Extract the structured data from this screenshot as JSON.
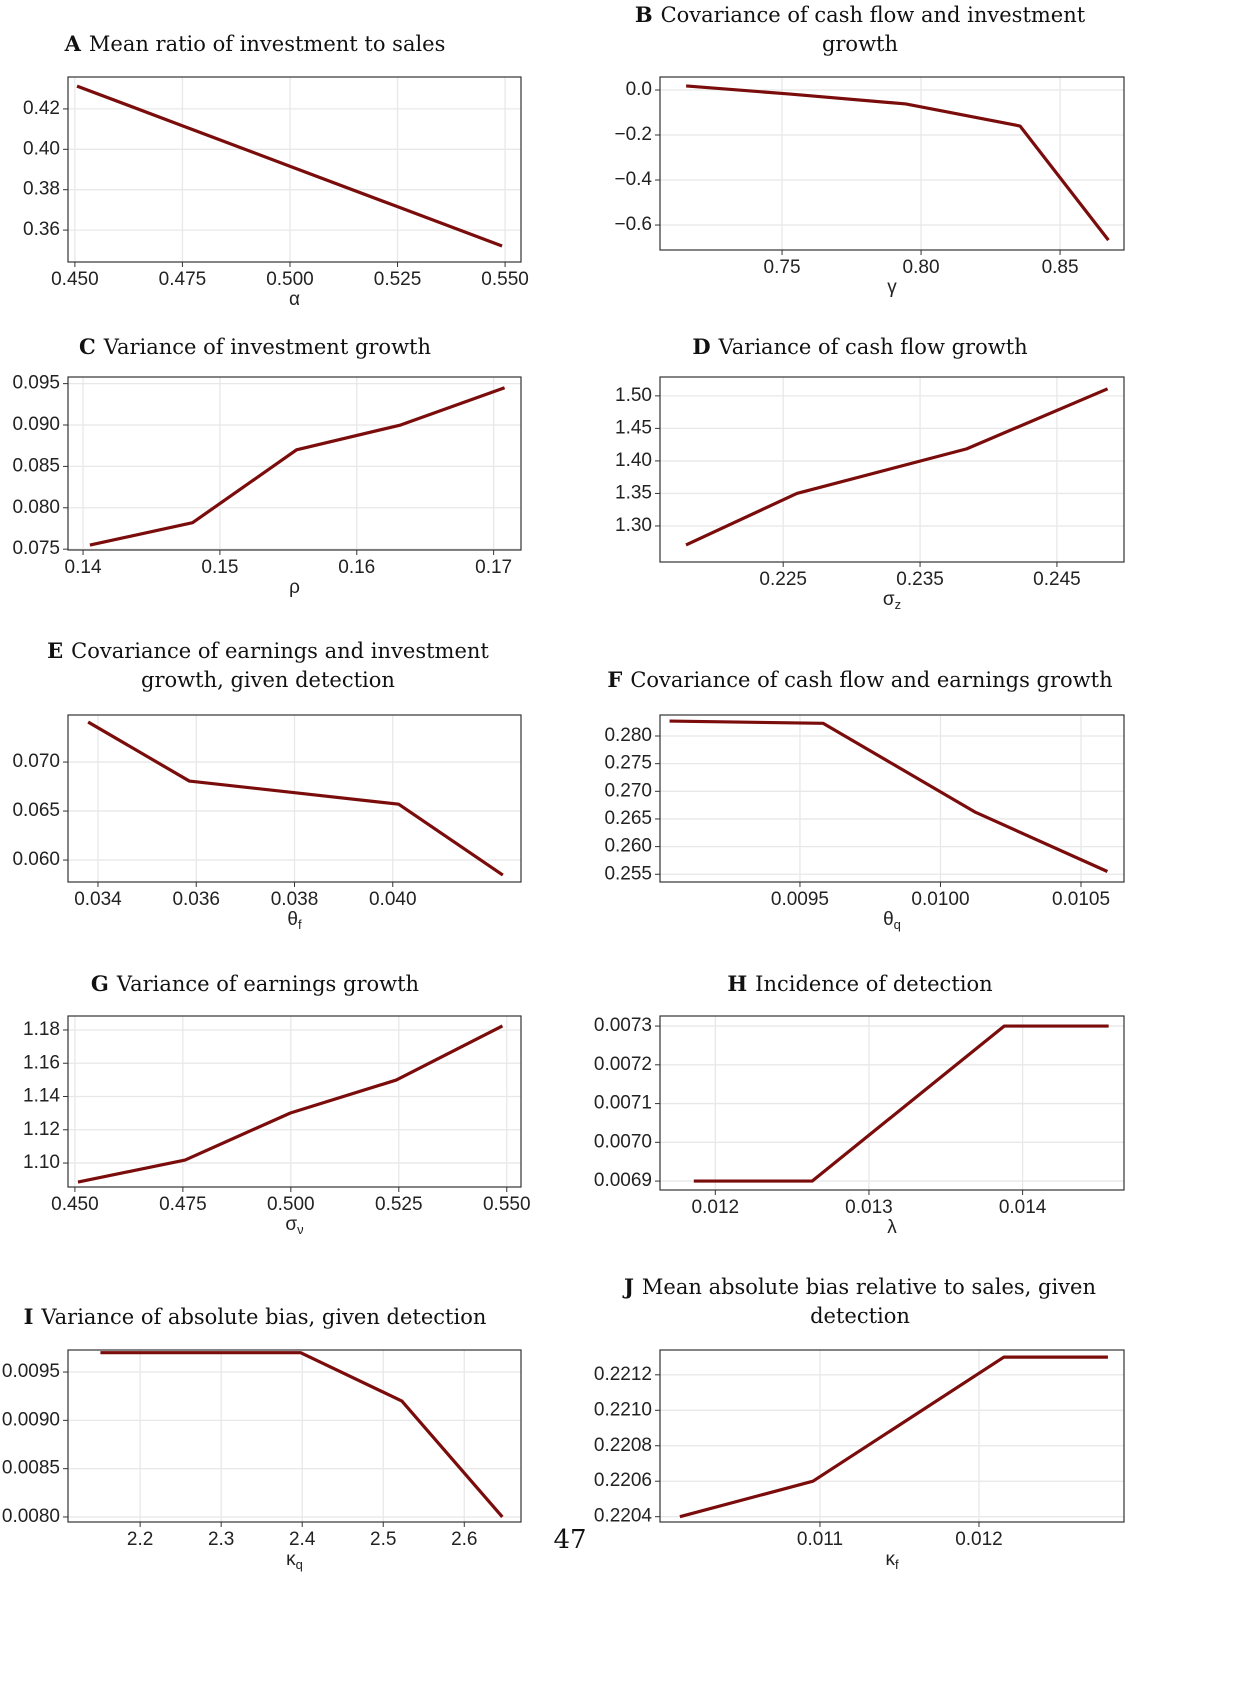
{
  "page_number": "47",
  "chart_data": [
    {
      "type": "line",
      "panel": "A",
      "title": [
        "Mean ratio of investment to sales"
      ],
      "xlabel": "α",
      "color": "#7b0c0c",
      "grid": true,
      "x": [
        0.4505,
        0.4752,
        0.4999,
        0.5246,
        0.5493
      ],
      "values": [
        0.4313,
        0.4115,
        0.3917,
        0.3719,
        0.3521
      ],
      "xlim": [
        0.4484,
        0.5537
      ],
      "ylim": [
        0.3442,
        0.4358
      ],
      "xticks": [
        {
          "value": 0.45,
          "label": "0.450"
        },
        {
          "value": 0.475,
          "label": "0.475"
        },
        {
          "value": 0.5,
          "label": "0.500"
        },
        {
          "value": 0.525,
          "label": "0.525"
        },
        {
          "value": 0.55,
          "label": "0.550"
        }
      ],
      "yticks": [
        0.42,
        {
          "value": 0.4,
          "label": "0.40"
        },
        0.38,
        0.36
      ]
    },
    {
      "type": "line",
      "panel": "B",
      "title": [
        "Covariance of cash flow and investment",
        "growth"
      ],
      "xlabel": "γ",
      "color": "#7b0c0c",
      "grid": true,
      "x": [
        0.7155,
        0.7529,
        0.7945,
        0.8356,
        0.8674
      ],
      "values": [
        0.018,
        -0.018,
        -0.062,
        -0.16,
        -0.667
      ],
      "xlim": [
        0.7061,
        0.873
      ],
      "ylim": [
        -0.711,
        0.0578
      ],
      "xticks": [
        0.75,
        {
          "value": 0.8,
          "label": "0.80"
        },
        0.85
      ],
      "yticks": [
        {
          "value": 0,
          "label": "0.0"
        },
        {
          "value": -0.2,
          "label": "−0.2"
        },
        {
          "value": -0.4,
          "label": "−0.4"
        },
        {
          "value": -0.6,
          "label": "−0.6"
        }
      ]
    },
    {
      "type": "line",
      "panel": "C",
      "title": [
        "Variance of investment growth"
      ],
      "xlabel": "ρ",
      "color": "#7b0c0c",
      "grid": true,
      "x": [
        0.1405,
        0.148,
        0.1556,
        0.1632,
        0.1708
      ],
      "values": [
        0.0755,
        0.0782,
        0.087,
        0.09,
        0.0945
      ],
      "xlim": [
        0.1389,
        0.172
      ],
      "ylim": [
        0.0749,
        0.0958
      ],
      "xticks": [
        0.14,
        0.15,
        0.16,
        0.17
      ],
      "yticks": [
        0.095,
        {
          "value": 0.09,
          "label": "0.090"
        },
        0.085,
        {
          "value": 0.08,
          "label": "0.080"
        },
        0.075
      ]
    },
    {
      "type": "line",
      "panel": "D",
      "title": [
        "Variance of cash flow growth"
      ],
      "xlabel": "σ",
      "xlabel_sub": "z",
      "color": "#7b0c0c",
      "grid": true,
      "x": [
        0.2179,
        0.226,
        0.2384,
        0.2487
      ],
      "values": [
        1.2708,
        1.35,
        1.4185,
        1.5108
      ],
      "xlim": [
        0.216,
        0.2499
      ],
      "ylim": [
        1.2446,
        1.529
      ],
      "xticks": [
        0.225,
        0.235,
        0.245
      ],
      "yticks": [
        {
          "value": 1.5,
          "label": "1.50"
        },
        1.45,
        {
          "value": 1.4,
          "label": "1.40"
        },
        1.35,
        {
          "value": 1.3,
          "label": "1.30"
        }
      ]
    },
    {
      "type": "line",
      "panel": "E",
      "title": [
        "Covariance of earnings and investment",
        "growth, given detection"
      ],
      "xlabel": "θ",
      "xlabel_sub": "f",
      "color": "#7b0c0c",
      "grid": true,
      "x": [
        0.0338,
        0.03586,
        0.04012,
        0.04224
      ],
      "values": [
        0.07408,
        0.06806,
        0.0657,
        0.05847
      ],
      "xlim": [
        0.03339,
        0.04261
      ],
      "ylim": [
        0.05776,
        0.0748
      ],
      "xticks": [
        0.034,
        0.036,
        0.038,
        {
          "value": 0.04,
          "label": "0.040"
        }
      ],
      "yticks": [
        {
          "value": 0.07,
          "label": "0.070"
        },
        0.065,
        {
          "value": 0.06,
          "label": "0.060"
        }
      ]
    },
    {
      "type": "line",
      "panel": "F",
      "title": [
        "Covariance of cash flow and earnings growth"
      ],
      "xlabel": "θ",
      "xlabel_sub": "q",
      "color": "#7b0c0c",
      "grid": true,
      "x": [
        0.009036,
        0.009582,
        0.010125,
        0.010594
      ],
      "values": [
        0.2827,
        0.2823,
        0.2662,
        0.2555
      ],
      "xlim": [
        0.009002,
        0.010653
      ],
      "ylim": [
        0.2536,
        0.2838
      ],
      "xticks": [
        0.0095,
        {
          "value": 0.01,
          "label": "0.0100"
        },
        0.0105
      ],
      "yticks": [
        {
          "value": 0.28,
          "label": "0.280"
        },
        0.275,
        {
          "value": 0.27,
          "label": "0.270"
        },
        0.265,
        {
          "value": 0.26,
          "label": "0.260"
        },
        0.255
      ]
    },
    {
      "type": "line",
      "panel": "G",
      "title": [
        "Variance of earnings growth"
      ],
      "xlabel": "σ",
      "xlabel_sub": "ν",
      "color": "#7b0c0c",
      "grid": true,
      "x": [
        0.4507,
        0.4755,
        0.4999,
        0.5244,
        0.549
      ],
      "values": [
        1.0886,
        1.1018,
        1.1301,
        1.1499,
        1.1824
      ],
      "xlim": [
        0.4484,
        0.5533
      ],
      "ylim": [
        1.0856,
        1.1884
      ],
      "xticks": [
        {
          "value": 0.45,
          "label": "0.450"
        },
        0.475,
        {
          "value": 0.5,
          "label": "0.500"
        },
        0.525,
        {
          "value": 0.55,
          "label": "0.550"
        }
      ],
      "yticks": [
        1.18,
        1.16,
        1.14,
        1.12,
        {
          "value": 1.1,
          "label": "1.10"
        }
      ]
    },
    {
      "type": "line",
      "panel": "H",
      "title": [
        "Incidence of detection"
      ],
      "xlabel": "λ",
      "color": "#7b0c0c",
      "grid": true,
      "x": [
        0.01186,
        0.01263,
        0.01388,
        0.01456
      ],
      "values": [
        0.0069,
        0.0069,
        0.0073,
        0.0073
      ],
      "xlim": [
        0.01164,
        0.01466
      ],
      "ylim": [
        0.006877,
        0.007326
      ],
      "xticks": [
        0.012,
        0.013,
        0.014
      ],
      "yticks": [
        0.0073,
        0.0072,
        0.0071,
        {
          "value": 0.007,
          "label": "0.0070"
        },
        0.0069
      ]
    },
    {
      "type": "line",
      "panel": "I",
      "title": [
        "Variance of absolute bias, given detection"
      ],
      "xlabel": "κ",
      "xlabel_sub": "q",
      "color": "#7b0c0c",
      "grid": true,
      "x": [
        2.151,
        2.398,
        2.523,
        2.647
      ],
      "values": [
        0.0097,
        0.0097,
        0.0092,
        0.008
      ],
      "xlim": [
        2.111,
        2.67
      ],
      "ylim": [
        0.007948,
        0.009728
      ],
      "xticks": [
        2.2,
        2.3,
        2.4,
        2.5,
        2.6
      ],
      "yticks": [
        0.0095,
        {
          "value": 0.009,
          "label": "0.0090"
        },
        0.0085,
        {
          "value": 0.008,
          "label": "0.0080"
        }
      ]
    },
    {
      "type": "line",
      "panel": "J",
      "title": [
        "Mean absolute bias relative to sales, given",
        "detection"
      ],
      "xlabel": "κ",
      "xlabel_sub": "f",
      "color": "#7b0c0c",
      "grid": true,
      "x": [
        0.010119,
        0.010956,
        0.012157,
        0.012811
      ],
      "values": [
        0.2204,
        0.2206,
        0.2213,
        0.2213
      ],
      "xlim": [
        0.009994,
        0.012912
      ],
      "ylim": [
        0.22037,
        0.22134
      ],
      "xticks": [
        0.011,
        0.012
      ],
      "yticks": [
        0.2212,
        {
          "value": 0.221,
          "label": "0.2210"
        },
        0.2208,
        0.2206,
        0.2204
      ]
    }
  ]
}
